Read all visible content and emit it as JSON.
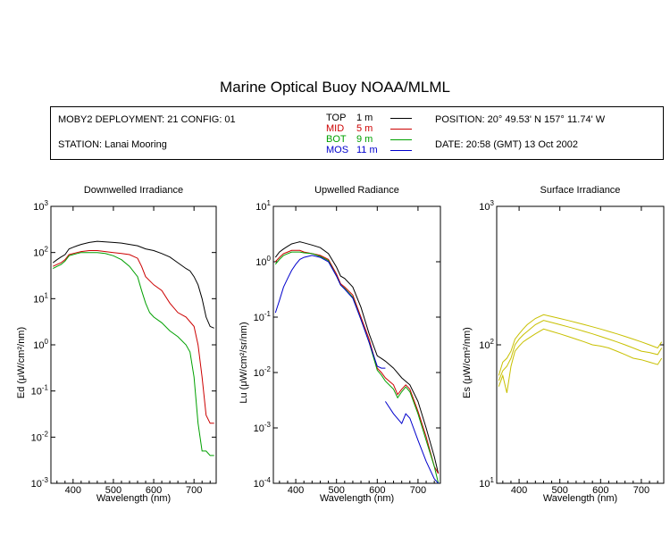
{
  "title": "Marine Optical Buoy NOAA/MLML",
  "info": {
    "deployment": "MOBY2 DEPLOYMENT: 21 CONFIG: 01",
    "station": "STATION: Lanai Mooring",
    "position": "POSITION: 20° 49.53' N   157° 11.74' W",
    "date": "DATE: 20:58 (GMT) 13 Oct 2002"
  },
  "legend": [
    {
      "name": "TOP",
      "depth": "1  m",
      "color": "#000000"
    },
    {
      "name": "MID",
      "depth": "5  m",
      "color": "#cc0000"
    },
    {
      "name": "BOT",
      "depth": "9  m",
      "color": "#00a000"
    },
    {
      "name": "MOS",
      "depth": "11  m",
      "color": "#0000cc"
    }
  ],
  "chart_data": [
    {
      "type": "line",
      "title": "Downwelled Irradiance",
      "xlabel": "Wavelength (nm)",
      "ylabel": "Ed  (μW/cm²/nm)",
      "xlim": [
        345,
        755
      ],
      "ylim": [
        0.001,
        1000
      ],
      "yscale": "log",
      "xticks": [
        400,
        500,
        600,
        700
      ],
      "yticks": [
        {
          "v": 0.001,
          "base": "10",
          "exp": "-3"
        },
        {
          "v": 0.01,
          "base": "10",
          "exp": "-2"
        },
        {
          "v": 0.1,
          "base": "10",
          "exp": "-1"
        },
        {
          "v": 1,
          "base": "10",
          "exp": "0"
        },
        {
          "v": 10,
          "base": "10",
          "exp": "1"
        },
        {
          "v": 100,
          "base": "10",
          "exp": "2"
        },
        {
          "v": 1000,
          "base": "10",
          "exp": "3"
        }
      ],
      "series": [
        {
          "name": "TOP",
          "color": "#000000",
          "x": [
            350,
            360,
            370,
            380,
            390,
            400,
            410,
            420,
            440,
            460,
            480,
            500,
            520,
            540,
            560,
            580,
            600,
            620,
            640,
            660,
            680,
            690,
            700,
            710,
            720,
            730,
            740,
            750
          ],
          "y": [
            60,
            70,
            80,
            90,
            120,
            130,
            140,
            150,
            165,
            175,
            170,
            165,
            160,
            150,
            140,
            120,
            110,
            95,
            80,
            60,
            45,
            40,
            30,
            20,
            10,
            4,
            2.5,
            2.3
          ]
        },
        {
          "name": "MID",
          "color": "#cc0000",
          "x": [
            350,
            360,
            370,
            380,
            390,
            400,
            410,
            420,
            440,
            460,
            480,
            500,
            520,
            540,
            560,
            570,
            580,
            600,
            620,
            640,
            660,
            680,
            700,
            710,
            720,
            730,
            740,
            750
          ],
          "y": [
            50,
            55,
            60,
            70,
            90,
            95,
            100,
            105,
            110,
            110,
            105,
            100,
            95,
            90,
            75,
            50,
            30,
            20,
            15,
            8,
            5,
            4,
            2.5,
            1,
            0.2,
            0.03,
            0.02,
            0.02
          ]
        },
        {
          "name": "BOT",
          "color": "#00a000",
          "x": [
            350,
            360,
            370,
            380,
            390,
            400,
            410,
            420,
            440,
            460,
            480,
            500,
            520,
            540,
            560,
            570,
            580,
            590,
            600,
            620,
            640,
            660,
            680,
            690,
            700,
            710,
            720,
            730,
            740,
            750
          ],
          "y": [
            45,
            50,
            55,
            65,
            85,
            90,
            95,
            100,
            100,
            100,
            95,
            85,
            70,
            50,
            30,
            15,
            8,
            5,
            4,
            3,
            2,
            1.5,
            1,
            0.7,
            0.2,
            0.02,
            0.005,
            0.005,
            0.004,
            0.004
          ]
        }
      ]
    },
    {
      "type": "line",
      "title": "Upwelled Radiance",
      "xlabel": "Wavelength (nm)",
      "ylabel": "Lu  (μW/cm²/sr/nm)",
      "xlim": [
        345,
        755
      ],
      "ylim": [
        0.0001,
        10
      ],
      "yscale": "log",
      "xticks": [
        400,
        500,
        600,
        700
      ],
      "yticks": [
        {
          "v": 0.0001,
          "base": "10",
          "exp": "-4"
        },
        {
          "v": 0.001,
          "base": "10",
          "exp": "-3"
        },
        {
          "v": 0.01,
          "base": "10",
          "exp": "-2"
        },
        {
          "v": 0.1,
          "base": "10",
          "exp": "-1"
        },
        {
          "v": 1,
          "base": "10",
          "exp": "0"
        },
        {
          "v": 10,
          "base": "10",
          "exp": "1"
        }
      ],
      "series": [
        {
          "name": "TOP",
          "color": "#000000",
          "x": [
            350,
            360,
            370,
            380,
            390,
            400,
            410,
            420,
            440,
            460,
            480,
            500,
            510,
            520,
            540,
            560,
            580,
            600,
            610,
            620,
            640,
            660,
            680,
            700,
            720,
            740,
            750
          ],
          "y": [
            1.2,
            1.5,
            1.7,
            1.9,
            2.1,
            2.2,
            2.3,
            2.2,
            2.0,
            1.8,
            1.4,
            0.8,
            0.55,
            0.5,
            0.35,
            0.15,
            0.05,
            0.02,
            0.018,
            0.016,
            0.012,
            0.008,
            0.006,
            0.003,
            0.001,
            0.0003,
            0.00015
          ]
        },
        {
          "name": "MID",
          "color": "#cc0000",
          "x": [
            350,
            360,
            370,
            380,
            390,
            400,
            410,
            420,
            440,
            460,
            480,
            500,
            510,
            520,
            540,
            560,
            580,
            600,
            610,
            620,
            640,
            650,
            660,
            670,
            680,
            700,
            720,
            740,
            750
          ],
          "y": [
            1.0,
            1.2,
            1.4,
            1.5,
            1.6,
            1.6,
            1.6,
            1.5,
            1.4,
            1.3,
            1.1,
            0.6,
            0.4,
            0.35,
            0.25,
            0.1,
            0.04,
            0.012,
            0.01,
            0.008,
            0.006,
            0.004,
            0.005,
            0.006,
            0.005,
            0.002,
            0.0007,
            0.0002,
            0.00015
          ]
        },
        {
          "name": "BOT",
          "color": "#00a000",
          "x": [
            350,
            360,
            370,
            380,
            390,
            400,
            410,
            420,
            440,
            460,
            480,
            500,
            510,
            520,
            540,
            560,
            580,
            600,
            610,
            620,
            640,
            650,
            660,
            670,
            680,
            700,
            720,
            740,
            750
          ],
          "y": [
            0.9,
            1.1,
            1.3,
            1.4,
            1.5,
            1.5,
            1.5,
            1.45,
            1.4,
            1.25,
            1.05,
            0.55,
            0.38,
            0.33,
            0.23,
            0.09,
            0.035,
            0.011,
            0.009,
            0.007,
            0.005,
            0.0035,
            0.0045,
            0.0055,
            0.0045,
            0.0018,
            0.0006,
            0.0002,
            0.0001
          ]
        },
        {
          "name": "MOS",
          "color": "#0000cc",
          "x": [
            350,
            360,
            370,
            380,
            390,
            400,
            410,
            420,
            440,
            460,
            480,
            500,
            510,
            520,
            540,
            560,
            580,
            600,
            610,
            620
          ],
          "y": [
            0.12,
            0.2,
            0.35,
            0.5,
            0.7,
            0.9,
            1.1,
            1.2,
            1.3,
            1.2,
            1.0,
            0.55,
            0.38,
            0.32,
            0.22,
            0.09,
            0.035,
            0.013,
            0.012,
            0.012
          ]
        },
        {
          "name": "MOS",
          "color": "#0000cc",
          "x": [
            620,
            640,
            660,
            670,
            680,
            700,
            720,
            740,
            750
          ],
          "y": [
            0.003,
            0.0018,
            0.0012,
            0.0018,
            0.0015,
            0.0006,
            0.00025,
            0.00012,
            0.0001
          ]
        }
      ]
    },
    {
      "type": "line",
      "title": "Surface Irradiance",
      "xlabel": "Wavelength (nm)",
      "ylabel": "Es  (μW/cm²/nm)",
      "xlim": [
        345,
        755
      ],
      "ylim": [
        10,
        1000
      ],
      "yscale": "log",
      "xticks": [
        400,
        500,
        600,
        700
      ],
      "yticks": [
        {
          "v": 10,
          "base": "10",
          "exp": "1"
        },
        {
          "v": 100,
          "base": "10",
          "exp": "2"
        },
        {
          "v": 1000,
          "base": "10",
          "exp": "3"
        }
      ],
      "series": [
        {
          "name": "",
          "color": "#c8c000",
          "x": [
            350,
            360,
            370,
            380,
            390,
            400,
            410,
            420,
            440,
            460,
            480,
            500,
            520,
            540,
            560,
            580,
            600,
            620,
            640,
            660,
            680,
            700,
            720,
            740,
            750
          ],
          "y": [
            60,
            75,
            80,
            90,
            110,
            120,
            130,
            140,
            155,
            165,
            160,
            155,
            150,
            145,
            140,
            135,
            130,
            125,
            120,
            115,
            110,
            105,
            100,
            95,
            105
          ]
        },
        {
          "name": "",
          "color": "#c8c000",
          "x": [
            350,
            360,
            370,
            380,
            390,
            400,
            410,
            420,
            440,
            460,
            480,
            500,
            520,
            540,
            560,
            580,
            600,
            620,
            640,
            660,
            680,
            700,
            720,
            740,
            750
          ],
          "y": [
            55,
            65,
            70,
            80,
            100,
            110,
            118,
            125,
            140,
            150,
            145,
            140,
            135,
            130,
            125,
            120,
            115,
            110,
            105,
            100,
            95,
            90,
            88,
            85,
            95
          ]
        },
        {
          "name": "",
          "color": "#c8c000",
          "x": [
            350,
            360,
            370,
            380,
            390,
            400,
            410,
            420,
            440,
            460,
            480,
            500,
            520,
            540,
            560,
            580,
            600,
            620,
            640,
            660,
            680,
            700,
            720,
            740,
            750
          ],
          "y": [
            50,
            60,
            45,
            70,
            90,
            98,
            105,
            110,
            120,
            130,
            125,
            120,
            115,
            110,
            105,
            100,
            98,
            95,
            90,
            85,
            80,
            78,
            75,
            72,
            80
          ]
        }
      ]
    }
  ]
}
